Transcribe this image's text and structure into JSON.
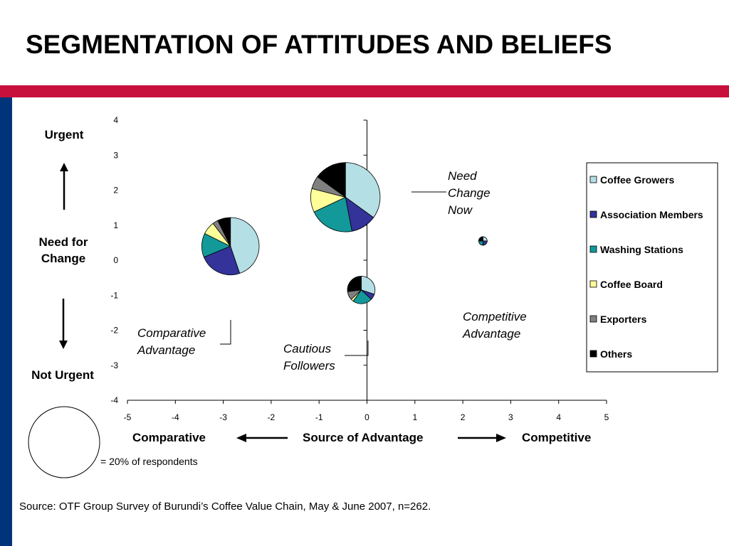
{
  "title": "SEGMENTATION OF ATTITUDES AND BELIEFS",
  "y_axis_labels": {
    "top": "Urgent",
    "middle": "Need for Change",
    "bottom": "Not Urgent"
  },
  "x_axis_labels": {
    "left": "Comparative",
    "center": "Source of Advantage",
    "right": "Competitive"
  },
  "size_legend": "= 20% of respondents",
  "source": "Source: OTF Group Survey of Burundi’s Coffee Value Chain, May & June 2007, n=262.",
  "colors": {
    "header_bar": "#c8103c",
    "side_bar": "#00337a",
    "series": [
      "#b4dfe5",
      "#33339a",
      "#139999",
      "#ffff99",
      "#808080",
      "#000000"
    ]
  },
  "chart_data": {
    "type": "pie-bubble",
    "xlim": [
      -5,
      5
    ],
    "ylim": [
      -4,
      4
    ],
    "xticks": [
      "-5",
      "-4",
      "-3",
      "-2",
      "-1",
      "0",
      "1",
      "2",
      "3",
      "4",
      "5"
    ],
    "yticks": [
      "4",
      "3",
      "2",
      "1",
      "0",
      "-1",
      "-2",
      "-3",
      "-4"
    ],
    "grid": false,
    "legend_position": "right",
    "series_names": [
      "Coffee Growers",
      "Association Members",
      "Washing Stations",
      "Coffee Board",
      "Exporters",
      "Others"
    ],
    "bubbles": [
      {
        "label": "Need Change Now",
        "x": -0.45,
        "y": 1.8,
        "respondent_share_pct": 19,
        "shares": [
          35,
          12,
          21,
          11,
          6,
          15
        ]
      },
      {
        "label": "Comparative Advantage",
        "x": -2.85,
        "y": 0.4,
        "respondent_share_pct": 13,
        "shares": [
          43,
          23,
          13,
          7,
          3,
          7
        ]
      },
      {
        "label": "Cautious Followers",
        "x": -0.12,
        "y": -0.85,
        "respondent_share_pct": 3,
        "shares": [
          30,
          7,
          23,
          3,
          10,
          27
        ]
      },
      {
        "label": "Competitive Advantage",
        "x": 2.42,
        "y": 0.55,
        "respondent_share_pct": 0.2,
        "shares": [
          25,
          25,
          25,
          0,
          0,
          25
        ]
      }
    ],
    "bubble_labels": [
      {
        "lines": [
          "Need",
          "Change",
          "Now"
        ]
      },
      {
        "lines": [
          "Comparative",
          "Advantage"
        ]
      },
      {
        "lines": [
          "Cautious",
          "Followers"
        ]
      },
      {
        "lines": [
          "Competitive",
          "Advantage"
        ]
      }
    ]
  }
}
